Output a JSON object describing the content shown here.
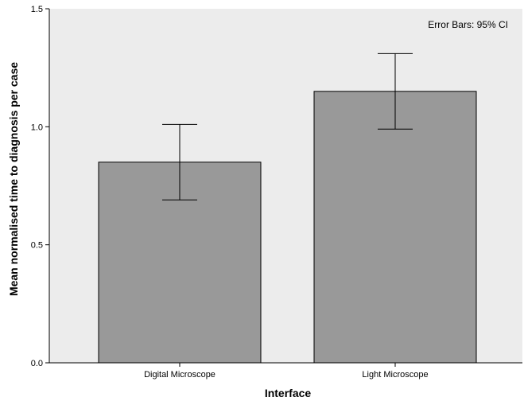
{
  "chart_data": {
    "type": "bar",
    "categories": [
      "Digital Microscope",
      "Light Microscope"
    ],
    "values": [
      0.85,
      1.15
    ],
    "error_bars": [
      {
        "lower": 0.69,
        "upper": 1.01
      },
      {
        "lower": 0.99,
        "upper": 1.31
      }
    ],
    "xlabel": "Interface",
    "ylabel": "Mean normalised time to diagnosis per case",
    "ylim": [
      0,
      1.5
    ],
    "yticks": [
      "0.0",
      "0.5",
      "1.0",
      "1.5"
    ],
    "annotation": "Error Bars: 95% CI",
    "grid": false,
    "colors": {
      "plot_background": "#ececec",
      "bar_fill": "#999999",
      "bar_stroke": "#000000"
    }
  }
}
